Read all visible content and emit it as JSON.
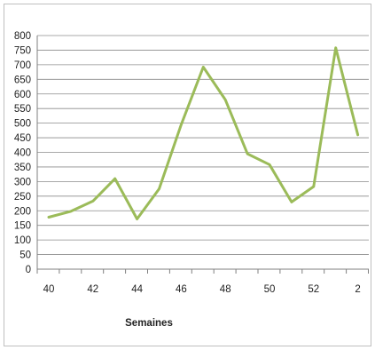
{
  "chart_data": {
    "type": "line",
    "title": "",
    "xlabel": "Semaines",
    "ylabel": "",
    "ylim": [
      0,
      800
    ],
    "yticks": [
      "0",
      "50",
      "100",
      "150",
      "200",
      "250",
      "300",
      "350",
      "400",
      "450",
      "500",
      "550",
      "600",
      "650",
      "700",
      "750",
      "800"
    ],
    "x_tick_labels": [
      "40",
      "42",
      "44",
      "46",
      "48",
      "50",
      "52",
      "2"
    ],
    "grid": "horizontal",
    "legend": "none",
    "categories": [
      "40",
      "41",
      "42",
      "43",
      "44",
      "45",
      "46",
      "47",
      "48",
      "49",
      "50",
      "51",
      "52",
      "53",
      "2"
    ],
    "series": [
      {
        "color": "#9bbb59",
        "values": [
          178,
          198,
          233,
          310,
          172,
          275,
          495,
          692,
          580,
          395,
          358,
          230,
          283,
          758,
          460
        ]
      }
    ]
  }
}
